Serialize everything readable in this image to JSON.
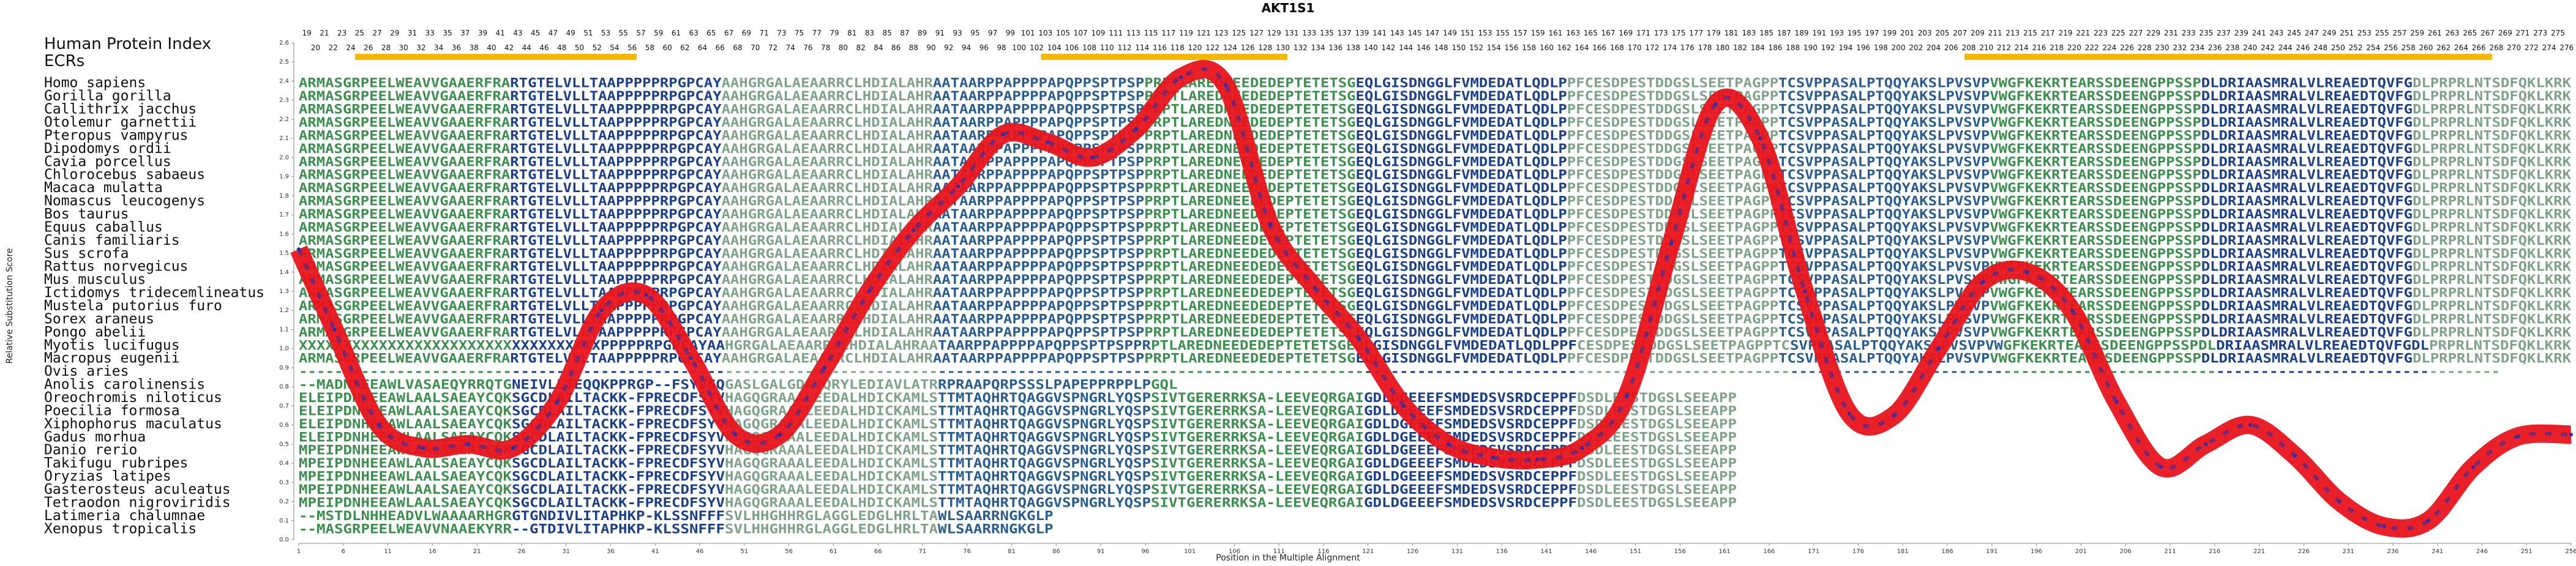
{
  "chart_data": {
    "type": "line",
    "title": "AKT1S1",
    "xlabel": "Position in the Multiple Alignment",
    "ylabel": "Relative Substitution Score",
    "ylim": [
      0,
      2.6
    ],
    "xlim": [
      1,
      256
    ],
    "y_ticks": [
      "0.0",
      "0.1",
      "0.2",
      "0.3",
      "0.4",
      "0.5",
      "0.6",
      "0.7",
      "0.8",
      "0.9",
      "1.0",
      "1.1",
      "1.2",
      "1.3",
      "1.4",
      "1.5",
      "1.6",
      "1.7",
      "1.8",
      "1.9",
      "2.0",
      "2.1",
      "2.2",
      "2.3",
      "2.4",
      "2.5",
      "2.6"
    ],
    "x_ticks": [
      "1",
      "6",
      "11",
      "16",
      "21",
      "26",
      "31",
      "36",
      "41",
      "46",
      "51",
      "56",
      "61",
      "66",
      "71",
      "76",
      "81",
      "86",
      "91",
      "96",
      "101",
      "106",
      "111",
      "116",
      "121",
      "126",
      "131",
      "136",
      "141",
      "146",
      "151",
      "156",
      "161",
      "166",
      "171",
      "176",
      "181",
      "186",
      "191",
      "196",
      "201",
      "206",
      "211",
      "216",
      "221",
      "226",
      "231",
      "236",
      "241",
      "246",
      "251",
      "256"
    ],
    "x": [
      1,
      5,
      10,
      15,
      20,
      25,
      30,
      35,
      40,
      45,
      50,
      55,
      60,
      65,
      70,
      75,
      80,
      85,
      90,
      95,
      100,
      105,
      110,
      115,
      120,
      125,
      130,
      135,
      140,
      145,
      150,
      155,
      160,
      165,
      170,
      175,
      180,
      185,
      190,
      195,
      200,
      205,
      210,
      215,
      220,
      225,
      230,
      235,
      240,
      245,
      250,
      256
    ],
    "y": [
      1.52,
      1.1,
      0.6,
      0.48,
      0.5,
      0.48,
      0.72,
      1.2,
      1.28,
      0.95,
      0.55,
      0.55,
      0.9,
      1.3,
      1.62,
      1.85,
      2.12,
      2.08,
      2.0,
      2.15,
      2.42,
      2.38,
      1.65,
      1.32,
      1.05,
      0.7,
      0.5,
      0.43,
      0.42,
      0.48,
      0.75,
      1.55,
      2.28,
      2.1,
      1.3,
      0.66,
      0.65,
      1.0,
      1.35,
      1.4,
      1.2,
      0.72,
      0.38,
      0.5,
      0.6,
      0.44,
      0.2,
      0.07,
      0.1,
      0.38,
      0.54,
      0.55
    ],
    "line_color": "#e8141b",
    "marker_color": "#2b2fa8"
  },
  "hpi": {
    "label": "Human Protein Index",
    "ecrs_label": "ECRs",
    "row1": [
      "19",
      "21",
      "23",
      "25",
      "27",
      "29",
      "31",
      "33",
      "35",
      "37",
      "39",
      "41",
      "43",
      "45",
      "47",
      "49",
      "51",
      "53",
      "55",
      "57",
      "59",
      "61",
      "63",
      "65",
      "67",
      "69",
      "71",
      "73",
      "75",
      "77",
      "79",
      "81",
      "83",
      "85",
      "87",
      "89",
      "91",
      "93",
      "95",
      "97",
      "99",
      "101",
      "103",
      "105",
      "107",
      "109",
      "111",
      "113",
      "115",
      "117",
      "119",
      "121",
      "123",
      "125",
      "127",
      "129",
      "131",
      "133",
      "135",
      "137",
      "139",
      "141",
      "143",
      "145",
      "147",
      "149",
      "151",
      "153",
      "155",
      "157",
      "159",
      "161",
      "163",
      "165",
      "167",
      "169",
      "171",
      "173",
      "175",
      "177",
      "179",
      "181",
      "183",
      "185",
      "187",
      "189",
      "191",
      "193",
      "195",
      "197",
      "199",
      "201",
      "203",
      "205",
      "207",
      "209",
      "211",
      "213",
      "215",
      "217",
      "219",
      "221",
      "223",
      "225",
      "227",
      "229",
      "231",
      "233",
      "235",
      "237",
      "239",
      "241",
      "243",
      "245",
      "247",
      "249",
      "251",
      "253",
      "255",
      "257",
      "259",
      "261",
      "263",
      "265",
      "267",
      "269",
      "271",
      "273",
      "275"
    ],
    "row2": [
      "20",
      "22",
      "24",
      "26",
      "28",
      "30",
      "32",
      "34",
      "36",
      "38",
      "40",
      "42",
      "44",
      "46",
      "48",
      "50",
      "52",
      "54",
      "56",
      "58",
      "60",
      "62",
      "64",
      "66",
      "68",
      "70",
      "72",
      "74",
      "76",
      "78",
      "80",
      "82",
      "84",
      "86",
      "88",
      "90",
      "92",
      "94",
      "96",
      "98",
      "100",
      "102",
      "104",
      "106",
      "108",
      "110",
      "112",
      "114",
      "116",
      "118",
      "120",
      "122",
      "124",
      "126",
      "128",
      "130",
      "132",
      "134",
      "136",
      "138",
      "140",
      "142",
      "144",
      "146",
      "148",
      "150",
      "152",
      "154",
      "156",
      "158",
      "160",
      "162",
      "164",
      "166",
      "168",
      "170",
      "172",
      "174",
      "176",
      "178",
      "180",
      "182",
      "184",
      "186",
      "188",
      "190",
      "192",
      "194",
      "196",
      "198",
      "200",
      "202",
      "204",
      "206",
      "208",
      "210",
      "212",
      "214",
      "216",
      "218",
      "220",
      "222",
      "224",
      "226",
      "228",
      "230",
      "232",
      "234",
      "236",
      "238",
      "240",
      "242",
      "244",
      "246",
      "248",
      "250",
      "252",
      "254",
      "256",
      "258",
      "260",
      "262",
      "264",
      "266",
      "268",
      "270",
      "272",
      "274",
      "276"
    ],
    "ecr_color": "#f5b800",
    "ecr_ranges": [
      [
        6,
        38
      ],
      [
        84,
        112
      ],
      [
        189,
        249
      ]
    ]
  },
  "alignment": {
    "species": [
      "Homo sapiens",
      "Gorilla gorilla",
      "Callithrix jacchus",
      "Otolemur garnettii",
      "Pteropus vampyrus",
      "Dipodomys ordii",
      "Cavia porcellus",
      "Chlorocebus sabaeus",
      "Macaca mulatta",
      "Nomascus leucogenys",
      "Bos taurus",
      "Equus caballus",
      "Canis familiaris",
      "Sus scrofa",
      "Rattus norvegicus",
      "Mus musculus",
      "Ictidomys tridecemlineatus",
      "Mustela putorius furo",
      "Sorex araneus",
      "Pongo abelii",
      "Myotis lucifugus",
      "Macropus eugenii",
      "Ovis aries",
      "Anolis carolinensis",
      "Oreochromis niloticus",
      "Poecilia formosa",
      "Xiphophorus maculatus",
      "Gadus morhua",
      "Danio rerio",
      "Takifugu rubripes",
      "Oryzias latipes",
      "Gasterosteus aculeatus",
      "Tetraodon nigroviridis",
      "Latimeria chalumnae",
      "Xenopus tropicalis"
    ],
    "sequences": [
      "ARMASGRPEELWEAVVGAAERFRARTGTELVLLTAAPPPPPRPGPCAYAAHGRGALAEAARRCLHDIALAHRAATAARPPAPPPPAPQPPSPTPSPPRPTLAREDNEEDEDEPTETETSGEQLGISDNGGLFVMDEDATLQDLPPFCESDPESTDDGSLSEETPAGPPTCSVPPASALPTQQYAKSLPVSVPVWGFKEKRTEARSSDEENGPPSSPDLDRIAASMRALVLREAEDTQVFGDLPRPRLNTSDFQKLKRK",
      "ARMASGRPEELWEAVVGAAERFRARTGTELVLLTAAPPPPPRPGPCAYAAHGRGALAEAARRCLHDIALAHRAATAARPPAPPPPAPQPPSPTPSPPRPTLAREDNEEDEDEPTETETSGEQLGISDNGGLFVMDEDATLQDLPPFCESDPESTDDGSLSEETPAGPPTCSVPPASALPTQQYAKSLPVSVPVWGFKEKRTEARSSDEENGPPSSPDLDRIAASMRALVLREAEDTQVFGDLPRPRLNTSDFQKLKRK",
      "ARMASGRPEELWEAVVGAAERFRARTGTELVLLTAAPPPPPRPGPCAYAAHGRGALAEAARRCLHDIALAHRAATAARPPAPPPPAPQPPSPTPSPPRPTLAREDNEEDEDEPTETETSGEQLGISDNGGLFVMDEDATLQDLPPFCESDPESTDDGSLSEETPAGPPTCSVPPASALPTQQYAKSLPVSVPVWGFKEKRTEARSSDEENGPPSSPDLDRIAASMRALVLREAEDTQVFGDLPRPRLNTSDFQKLKRK",
      "ARMASGRPEELWEAVVGAAERFRARTGTELVLLTAAPPPPPRPGPCAYAAHGRGALAEAARRCLHDIALAHRAATAARPPAPPPPAPQPPSPTPSPPRPTLAREDNEEDEDEPTETETSGEQLGISDNGGLFVMDEDATLQDLPPFCESDPESTDDGSLSEETPAGPPTCSVPPASALPTQQYAKSLPVSVPVWGFKEKRTEARSSDEENGPPSSPDLDRIAASMRALVLREAEDTQVFGDLPRPRLNTSDFQKLKRK",
      "ARMASGRPEELWEAVVGAAERFRARTGTELVLLTAAPPPPPRPGPCAYAAHGRGALAEAARRCLHDIALAHRAATAARPPAPPPPAPQPPSPTPSPPRPTLAREDNEEDEDEPTETETSGEQLGISDNGGLFVMDEDATLQDLPPFCESDPESTDDGSLSEETPAGPPTCSVPPASALPTQQYAKSLPVSVPVWGFKEKRTEARSSDEENGPPSSPDLDRIAASMRALVLREAEDTQVFGDLPRPRLNTSDFQKLKRK",
      "ARMASGRPEELWEAVVGAAERFRARTGTELVLLTAAPPPPPRPGPCAYAAHGRGALAEAARRCLHDIALAHRAATAARPPAPPPPAPQPPSPTPSPPRPTLAREDNEEDEDEPTETETSGEQLGISDNGGLFVMDEDATLQDLPPFCESDPESTDDGSLSEETPAGPPTCSVPPASALPTQQYAKSLPVSVPVWGFKEKRTEARSSDEENGPPSSPDLDRIAASMRALVLREAEDTQVFGDLPRPRLNTSDFQKLKRK",
      "ARMASGRPEELWEAVVGAAERFRARTGTELVLLTAAPPPPPRPGPCAYAAHGRGALAEAARRCLHDIALAHRAATAARPPAPPPPAPQPPSPTPSPPRPTLAREDNEEDEDEPTETETSGEQLGISDNGGLFVMDEDATLQDLPPFCESDPESTDDGSLSEETPAGPPTCSVPPASALPTQQYAKSLPVSVPVWGFKEKRTEARSSDEENGPPSSPDLDRIAASMRALVLREAEDTQVFGDLPRPRLNTSDFQKLKRK",
      "ARMASGRPEELWEAVVGAAERFRARTGTELVLLTAAPPPPPRPGPCAYAAHGRGALAEAARRCLHDIALAHRAATAARPPAPPPPAPQPPSPTPSPPRPTLAREDNEEDEDEPTETETSGEQLGISDNGGLFVMDEDATLQDLPPFCESDPESTDDGSLSEETPAGPPTCSVPPASALPTQQYAKSLPVSVPVWGFKEKRTEARSSDEENGPPSSPDLDRIAASMRALVLREAEDTQVFGDLPRPRLNTSDFQKLKRK",
      "ARMASGRPEELWEAVVGAAERFRARTGTELVLLTAAPPPPPRPGPCAYAAHGRGALAEAARRCLHDIALAHRAATAARPPAPPPPAPQPPSPTPSPPRPTLAREDNEEDEDEPTETETSGEQLGISDNGGLFVMDEDATLQDLPPFCESDPESTDDGSLSEETPAGPPTCSVPPASALPTQQYAKSLPVSVPVWGFKEKRTEARSSDEENGPPSSPDLDRIAASMRALVLREAEDTQVFGDLPRPRLNTSDFQKLKRK",
      "ARMASGRPEELWEAVVGAAERFRARTGTELVLLTAAPPPPPRPGPCAYAAHGRGALAEAARRCLHDIALAHRAATAARPPAPPPPAPQPPSPTPSPPRPTLAREDNEEDEDEPTETETSGEQLGISDNGGLFVMDEDATLQDLPPFCESDPESTDDGSLSEETPAGPPTCSVPPASALPTQQYAKSLPVSVPVWGFKEKRTEARSSDEENGPPSSPDLDRIAASMRALVLREAEDTQVFGDLPRPRLNTSDFQKLKRK",
      "ARMASGRPEELWEAVVGAAERFRARTGTELVLLTAAPPPPPRPGPCAYAAHGRGALAEAARRCLHDIALAHRAATAARPPAPPPPAPQPPSPTPSPPRPTLAREDNEEDEDEPTETETSGEQLGISDNGGLFVMDEDATLQDLPPFCESDPESTDDGSLSEETPAGPPTCSVPPASALPTQQYAKSLPVSVPVWGFKEKRTEARSSDEENGPPSSPDLDRIAASMRALVLREAEDTQVFGDLPRPRLNTSDFQKLKRK",
      "ARMASGRPEELWEAVVGAAERFRARTGTELVLLTAAPPPPPRPGPCAYAAHGRGALAEAARRCLHDIALAHRAATAARPPAPPPPAPQPPSPTPSPPRPTLAREDNEEDEDEPTETETSGEQLGISDNGGLFVMDEDATLQDLPPFCESDPESTDDGSLSEETPAGPPTCSVPPASALPTQQYAKSLPVSVPVWGFKEKRTEARSSDEENGPPSSPDLDRIAASMRALVLREAEDTQVFGDLPRPRLNTSDFQKLKRK",
      "ARMASGRPEELWEAVVGAAERFRARTGTELVLLTAAPPPPPRPGPCAYAAHGRGALAEAARRCLHDIALAHRAATAARPPAPPPPAPQPPSPTPSPPRPTLAREDNEEDEDEPTETETSGEQLGISDNGGLFVMDEDATLQDLPPFCESDPESTDDGSLSEETPAGPPTCSVPPASALPTQQYAKSLPVSVPVWGFKEKRTEARSSDEENGPPSSPDLDRIAASMRALVLREAEDTQVFGDLPRPRLNTSDFQKLKRK",
      "ARMASGRPEELWEAVVGAAERFRARTGTELVLLTAAPPPPPRPGPCAYAAHGRGALAEAARRCLHDIALAHRAATAARPPAPPPPAPQPPSPTPSPPRPTLAREDNEEDEDEPTETETSGEQLGISDNGGLFVMDEDATLQDLPPFCESDPESTDDGSLSEETPAGPPTCSVPPASALPTQQYAKSLPVSVPVWGFKEKRTEARSSDEENGPPSSPDLDRIAASMRALVLREAEDTQVFGDLPRPRLNTSDFQKLKRK",
      "ARMASGRPEELWEAVVGAAERFRARTGTELVLLTAAPPPPPRPGPCAYAAHGRGALAEAARRCLHDIALAHRAATAARPPAPPPPAPQPPSPTPSPPRPTLAREDNEEDEDEPTETETSGEQLGISDNGGLFVMDEDATLQDLPPFCESDPESTDDGSLSEETPAGPPTCSVPPASALPTQQYAKSLPVSVPVWGFKEKRTEARSSDEENGPPSSPDLDRIAASMRALVLREAEDTQVFGDLPRPRLNTSDFQKLKRK",
      "ARMASGRPEELWEAVVGAAERFRARTGTELVLLTAAPPPPPRPGPCAYAAHGRGALAEAARRCLHDIALAHRAATAARPPAPPPPAPQPPSPTPSPPRPTLAREDNEEDEDEPTETETSGEQLGISDNGGLFVMDEDATLQDLPPFCESDPESTDDGSLSEETPAGPPTCSVPPASALPTQQYAKSLPVSVPVWGFKEKRTEARSSDEENGPPSSPDLDRIAASMRALVLREAEDTQVFGDLPRPRLNTSDFQKLKRK",
      "ARMASGRPEELWEAVVGAAERFRARTGTELVLLTAAPPPPPRPGPCAYAAHGRGALAEAARRCLHDIALAHRAATAARPPAPPPPAPQPPSPTPSPPRPTLAREDNEEDEDEPTETETSGEQLGISDNGGLFVMDEDATLQDLPPFCESDPESTDDGSLSEETPAGPPTCSVPPASALPTQQYAKSLPVSVPVWGFKEKRTEARSSDEENGPPSSPDLDRIAASMRALVLREAEDTQVFGDLPRPRLNTSDFQKLKRK",
      "ARMASGRPEELWEAVVGAAERFRARTGTELVLLTAAPPPPPRPGPCAYAAHGRGALAEAARRCLHDIALAHRAATAARPPAPPPPAPQPPSPTPSPPRPTLAREDNEEDEDEPTETETSGEQLGISDNGGLFVMDEDATLQDLPPFCESDPESTDDGSLSEETPAGPPTCSVPPASALPTQQYAKSLPVSVPVWGFKEKRTEARSSDEENGPPSSPDLDRIAASMRALVLREAEDTQVFGDLPRPRLNTSDFQKLKRK",
      "ARMASGRPEELWEAVVGAAERFRARTGTELVLLTAAPPPPPRPGPCAYAAHGRGALAEAARRCLHDIALAHRAATAARPPAPPPPAPQPPSPTPSPPRPTLAREDNEEDEDEPTETETSGEQLGISDNGGLFVMDEDATLQDLPPFCESDPESTDDGSLSEETPAGPPTCSVPPASALPTQQYAKSLPVSVPVWGFKEKRTEARSSDEENGPPSSPDLDRIAASMRALVLREAEDTQVFGDLPRPRLNTSDFQKLKRK",
      "ARMASGRPEELWEAVVGAAERFRARTGTELVLLTAAPPPPPRPGPCAYAAHGRGALAEAARRCLHDIALAHRAATAARPPAPPPPAPQPPSPTPSPPRPTLAREDNEEDEDEPTETETSGEQLGISDNGGLFVMDEDATLQDLPPFCESDPESTDDGSLSEETPAGPPTCSVPPASALPTQQYAKSLPVSVPVWGFKEKRTEARSSDEENGPPSSPDLDRIAASMRALVLREAEDTQVFGDLPRPRLNTSDFQKLKRK",
      "XXXXXXXXXXXXXXXXXXXXXXXXXXXXXXXXXXPPPPPRPGPCAYAAHGRGALAEAARRCLHDIALAHRAATAARPPAPPPPAPQPPSPTPSPPRPTLAREDNEEDEDEPTETETSGEQLGISDNGGLFVMDEDATLQDLPPFCESDPESTDDGSLSEETPAGPPTCSVPPASALPTQQYAKSLPVSVPVWGFKEKRTEARSSDEENGPPSSPDLDRIAASMRALVLREAEDTQVFGDLPRPRLNTSDFQKLKRK",
      "ARMASGRPEELWEAVVGAAERFRARTGTELVLLTAAPPPPPRPGPCAYAAHGRGALAEAARRCLHDIALAHRAATAARPPAPPPPAPQPPSPTPSPPRPTLAREDNEEDEDEPTETETSGEQLGISDNGGLFVMDEDATLQDLPPFCESDPESTDDGSLSEETPAGPPTCSVPPASALPTQQYAKSLPVSVPVWGFKEKRTEARSSDEENGPPSSPDLDRIAASMRALVLREAEDTQVFGDLPRPRLNTSDFQKLKRK",
      "--------------------------------------------------------------------------------------------------------------------------------------------------------------------------------------------------------------------------------------------------------",
      "--MADNREEAWLVASAEQYRRQTGNEIVLLTEQQKPPRGP--FSYVGQGASLGALGDAVQRYLEDIAVLATRRPRAAPQRPSSSLPAPEPPRPPLPGQL",
      "ELEIPDNHEEAWLAALSAEAYCQKSGCDLAILTACKK-FPRECDFSYVHAGQGRAAALEEDALHDICKAMLSTTMTAQHRTQAGGVSPNGRLYQSPSIVTGERERRKSA-LEEVEQRGAIGDLDGEEEFSMDEDSVSRDCEPPFDSDLEESTDGSLSEEAPP",
      "ELEIPDNHEEAWLAALSAEAYCQKSGCDLAILTACKK-FPRECDFSYVHAGQGRAAALEEDALHDICKAMLSTTMTAQHRTQAGGVSPNGRLYQSPSIVTGERERRKSA-LEEVEQRGAIGDLDGEEEFSMDEDSVSRDCEPPFDSDLEESTDGSLSEEAPP",
      "ELEIPDNHEEAWLAALSAEAYCQKSGCDLAILTACKK-FPRECDFSYVHAGQGRAAALEEDALHDICKAMLSTTMTAQHRTQAGGVSPNGRLYQSPSIVTGERERRKSA-LEEVEQRGAIGDLDGEEEFSMDEDSVSRDCEPPFDSDLEESTDGSLSEEAPP",
      "ELEIPDNHEEAWLAALSAEAYCQKSGCDLAILTACKK-FPRECDFSYVHAGQGRAAALEEDALHDICKAMLSTTMTAQHRTQAGGVSPNGRLYQSPSIVTGERERRKSA-LEEVEQRGAIGDLDGEEEFSMDEDSVSRDCEPPFDSDLEESTDGSLSEEAPP",
      "MPEIPDNHEEAWLAALSAEAYCQKSGCDLAILTACKK-FPRECDFSYVHAGQGRAAALEEDALHDICKAMLSTTMTAQHRTQAGGVSPNGRLYQSPSIVTGERERRKSA-LEEVEQRGAIGDLDGEEEFSMDEDSVSRDCEPPFDSDLEESTDGSLSEEAPP",
      "MPEIPDNHEEAWLAALSAEAYCQKSGCDLAILTACKK-FPRECDFSYVHAGQGRAAALEEDALHDICKAMLSTTMTAQHRTQAGGVSPNGRLYQSPSIVTGERERRKSA-LEEVEQRGAIGDLDGEEEFSMDEDSVSRDCEPPFDSDLEESTDGSLSEEAPP",
      "MPEIPDNHEEAWLAALSAEAYCQKSGCDLAILTACKK-FPRECDFSYVHAGQGRAAALEEDALHDICKAMLSTTMTAQHRTQAGGVSPNGRLYQSPSIVTGERERRKSA-LEEVEQRGAIGDLDGEEEFSMDEDSVSRDCEPPFDSDLEESTDGSLSEEAPP",
      "MPEIPDNHEEAWLAALSAEAYCQKSGCDLAILTACKK-FPRECDFSYVHAGQGRAAALEEDALHDICKAMLSTTMTAQHRTQAGGVSPNGRLYQSPSIVTGERERRKSA-LEEVEQRGAIGDLDGEEEFSMDEDSVSRDCEPPFDSDLEESTDGSLSEEAPP",
      "MPEIPDNHEEAWLAALSAEAYCQKSGCDLAILTACKK-FPRECDFSYVHAGQGRAAALEEDALHDICKAMLSTTMTAQHRTQAGGVSPNGRLYQSPSIVTGERERRKSA-LEEVEQRGAIGDLDGEEEFSMDEDSVSRDCEPPFDSDLEESTDGSLSEEAPP",
      "--MSTDLNHHEADVLWAAAARHGRGTGNDIVLITAPHKP-KLSSNFFFSVLHHGHHRGLAGGLEDGLHRLTAWLSAARRNGKGLP",
      "--MASGRPEELWEAVVNAAEKYRR--GTDIVLITAPHKP-KLSSNFFFSVLHHGHHRGLAGGLEDGLHRLTAWLSAARRNGKGLP"
    ]
  }
}
